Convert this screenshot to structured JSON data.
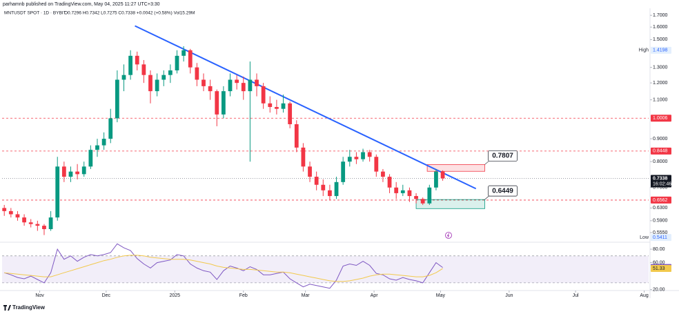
{
  "header": {
    "publisher": "parhamnb published on TradingView.com, May 04, 2025 11:27 UTC+3:30",
    "symbol": "MNTUSDT SPOT · 1D · BYBIT",
    "ohlc_text": "O0.7296 H0.7342 L0.7275 C0.7338 +0.0042 (+0.58%) Vol15.29M"
  },
  "chart_data": [
    {
      "type": "candlestick",
      "log_scale": true,
      "up_color": "#089981",
      "down_color": "#f23645",
      "xlim": [
        0,
        292
      ],
      "ylim": [
        0.53,
        1.744
      ],
      "xticks": [
        {
          "value": 17,
          "label": "Nov"
        },
        {
          "value": 47,
          "label": "Dec"
        },
        {
          "value": 78,
          "label": "2025"
        },
        {
          "value": 109,
          "label": "Feb"
        },
        {
          "value": 137,
          "label": "Mar"
        },
        {
          "value": 168,
          "label": "Apr"
        },
        {
          "value": 198,
          "label": "May"
        },
        {
          "value": 229,
          "label": "Jun"
        },
        {
          "value": 259,
          "label": "Jul"
        },
        {
          "value": 290,
          "label": "Aug"
        }
      ],
      "yticks": [
        {
          "value": 1.7,
          "label": "1.7000"
        },
        {
          "value": 1.6,
          "label": "1.6000"
        },
        {
          "value": 1.5,
          "label": "1.5000"
        },
        {
          "value": 1.3,
          "label": "1.3000"
        },
        {
          "value": 1.2,
          "label": "1.2000"
        },
        {
          "value": 1.1,
          "label": "1.1000"
        },
        {
          "value": 0.9,
          "label": "0.9000"
        },
        {
          "value": 0.8,
          "label": "0.8000"
        },
        {
          "value": 0.7,
          "label": "0.7000"
        },
        {
          "value": 0.63,
          "label": "0.6300"
        },
        {
          "value": 0.59,
          "label": "0.5900"
        },
        {
          "value": 0.555,
          "label": "0.5550"
        }
      ],
      "x": [
        1,
        4,
        7,
        10,
        13,
        16,
        19,
        22,
        25,
        28,
        31,
        34,
        37,
        40,
        43,
        46,
        49,
        52,
        55,
        58,
        61,
        64,
        67,
        70,
        73,
        76,
        79,
        82,
        85,
        88,
        91,
        94,
        97,
        100,
        103,
        106,
        109,
        112,
        115,
        118,
        121,
        124,
        127,
        130,
        133,
        136,
        139,
        142,
        145,
        148,
        151,
        154,
        157,
        160,
        163,
        166,
        169,
        172,
        175,
        178,
        181,
        184,
        187,
        190,
        193,
        196,
        199
      ],
      "ohlc": [
        [
          0.63,
          0.64,
          0.605,
          0.62
        ],
        [
          0.62,
          0.63,
          0.6,
          0.61
        ],
        [
          0.61,
          0.62,
          0.59,
          0.6
        ],
        [
          0.6,
          0.61,
          0.575,
          0.585
        ],
        [
          0.585,
          0.595,
          0.57,
          0.58
        ],
        [
          0.58,
          0.59,
          0.56,
          0.575
        ],
        [
          0.575,
          0.58,
          0.548,
          0.565
        ],
        [
          0.565,
          0.62,
          0.56,
          0.6
        ],
        [
          0.6,
          0.82,
          0.59,
          0.78
        ],
        [
          0.78,
          0.8,
          0.72,
          0.74
        ],
        [
          0.74,
          0.78,
          0.72,
          0.76
        ],
        [
          0.76,
          0.79,
          0.73,
          0.75
        ],
        [
          0.75,
          0.8,
          0.74,
          0.78
        ],
        [
          0.78,
          0.87,
          0.77,
          0.85
        ],
        [
          0.85,
          0.9,
          0.82,
          0.87
        ],
        [
          0.87,
          0.93,
          0.85,
          0.9
        ],
        [
          0.9,
          1.05,
          0.88,
          1.0
        ],
        [
          1.0,
          1.28,
          0.98,
          1.22
        ],
        [
          1.22,
          1.32,
          1.15,
          1.25
        ],
        [
          1.25,
          1.42,
          1.22,
          1.38
        ],
        [
          1.38,
          1.41,
          1.28,
          1.32
        ],
        [
          1.32,
          1.35,
          1.2,
          1.25
        ],
        [
          1.25,
          1.28,
          1.08,
          1.15
        ],
        [
          1.15,
          1.26,
          1.12,
          1.22
        ],
        [
          1.22,
          1.28,
          1.18,
          1.25
        ],
        [
          1.25,
          1.32,
          1.2,
          1.28
        ],
        [
          1.28,
          1.42,
          1.26,
          1.38
        ],
        [
          1.38,
          1.45,
          1.34,
          1.42
        ],
        [
          1.42,
          1.43,
          1.26,
          1.3
        ],
        [
          1.3,
          1.33,
          1.18,
          1.22
        ],
        [
          1.22,
          1.26,
          1.15,
          1.18
        ],
        [
          1.18,
          1.22,
          1.1,
          1.15
        ],
        [
          1.15,
          1.16,
          0.96,
          1.02
        ],
        [
          1.02,
          1.18,
          1.0,
          1.15
        ],
        [
          1.15,
          1.26,
          1.12,
          1.22
        ],
        [
          1.22,
          1.25,
          1.16,
          1.2
        ],
        [
          1.2,
          1.24,
          1.1,
          1.15
        ],
        [
          1.15,
          1.34,
          0.8,
          1.22
        ],
        [
          1.22,
          1.26,
          1.12,
          1.18
        ],
        [
          1.18,
          1.2,
          1.05,
          1.08
        ],
        [
          1.08,
          1.12,
          1.03,
          1.06
        ],
        [
          1.06,
          1.1,
          1.02,
          1.05
        ],
        [
          1.05,
          1.13,
          1.03,
          1.08
        ],
        [
          1.08,
          1.09,
          0.95,
          0.97
        ],
        [
          0.97,
          0.99,
          0.84,
          0.86
        ],
        [
          0.86,
          0.88,
          0.76,
          0.78
        ],
        [
          0.78,
          0.8,
          0.72,
          0.74
        ],
        [
          0.74,
          0.76,
          0.69,
          0.71
        ],
        [
          0.71,
          0.73,
          0.67,
          0.69
        ],
        [
          0.69,
          0.71,
          0.655,
          0.67
        ],
        [
          0.67,
          0.74,
          0.66,
          0.72
        ],
        [
          0.72,
          0.82,
          0.71,
          0.8
        ],
        [
          0.8,
          0.85,
          0.78,
          0.82
        ],
        [
          0.82,
          0.84,
          0.79,
          0.81
        ],
        [
          0.81,
          0.855,
          0.8,
          0.84
        ],
        [
          0.84,
          0.85,
          0.8,
          0.82
        ],
        [
          0.82,
          0.83,
          0.74,
          0.76
        ],
        [
          0.76,
          0.77,
          0.72,
          0.74
        ],
        [
          0.74,
          0.75,
          0.68,
          0.7
        ],
        [
          0.7,
          0.72,
          0.66,
          0.68
        ],
        [
          0.68,
          0.71,
          0.67,
          0.69
        ],
        [
          0.69,
          0.7,
          0.65,
          0.67
        ],
        [
          0.67,
          0.68,
          0.645,
          0.66
        ],
        [
          0.66,
          0.665,
          0.64,
          0.645
        ],
        [
          0.645,
          0.71,
          0.64,
          0.7
        ],
        [
          0.7,
          0.77,
          0.69,
          0.76
        ],
        [
          0.76,
          0.765,
          0.725,
          0.7338
        ]
      ],
      "levels": [
        {
          "value": 1.0006,
          "color": "#f23645"
        },
        {
          "value": 0.8448,
          "color": "#f23645"
        },
        {
          "value": 0.6562,
          "color": "#f23645"
        }
      ],
      "current_price": {
        "value": 0.7338,
        "countdown": "16:02:46"
      },
      "high": {
        "label": "High",
        "value": 1.4198
      },
      "low": {
        "label": "Low",
        "value": 0.5411
      },
      "trendline": {
        "x": [
          60,
          214
        ],
        "y": [
          1.61,
          0.696
        ],
        "color": "#2962ff"
      },
      "zones": [
        {
          "x": [
            192,
            218
          ],
          "y": [
            0.761,
            0.788
          ],
          "color": "#f23645",
          "label": 0.7807
        },
        {
          "x": [
            187,
            218
          ],
          "y": [
            0.628,
            0.658
          ],
          "color": "#089981",
          "label": 0.6449
        }
      ]
    },
    {
      "type": "line",
      "xlim": [
        0,
        292
      ],
      "ylim": [
        18.6,
        89.3
      ],
      "yticks": [
        {
          "value": 80,
          "label": "80.00"
        },
        {
          "value": 60,
          "label": "60.00"
        },
        {
          "value": 20,
          "label": "20.00"
        }
      ],
      "levels": [
        70,
        30
      ],
      "band_color": "#7e57c2",
      "x": [
        1,
        4,
        7,
        10,
        13,
        16,
        19,
        22,
        25,
        28,
        31,
        34,
        37,
        40,
        43,
        46,
        49,
        52,
        55,
        58,
        61,
        64,
        67,
        70,
        73,
        76,
        79,
        82,
        85,
        88,
        91,
        94,
        97,
        100,
        103,
        106,
        109,
        112,
        115,
        118,
        121,
        124,
        127,
        130,
        133,
        136,
        139,
        142,
        145,
        148,
        151,
        154,
        157,
        160,
        163,
        166,
        169,
        172,
        175,
        178,
        181,
        184,
        187,
        190,
        193,
        196,
        199
      ],
      "series": [
        {
          "color": "#7e57c2",
          "values": [
            45,
            42,
            38,
            36,
            40,
            35,
            30,
            45,
            80,
            65,
            70,
            62,
            68,
            72,
            70,
            72,
            75,
            88,
            82,
            78,
            66,
            58,
            52,
            60,
            62,
            64,
            72,
            70,
            58,
            52,
            48,
            46,
            35,
            48,
            55,
            52,
            48,
            54,
            50,
            42,
            42,
            44,
            46,
            36,
            30,
            24,
            28,
            26,
            24,
            22,
            34,
            55,
            58,
            56,
            62,
            56,
            44,
            42,
            36,
            34,
            38,
            35,
            33,
            30,
            45,
            60,
            52.86
          ]
        },
        {
          "color": "#f2c94c",
          "values": [
            45,
            44,
            43,
            42,
            41,
            40,
            39,
            39,
            42,
            45,
            48,
            51,
            54,
            57,
            60,
            63,
            65,
            68,
            70,
            71,
            71,
            70,
            68,
            67,
            66,
            65,
            65,
            65,
            64,
            62,
            60,
            58,
            55,
            53,
            52,
            51,
            50,
            50,
            49,
            48,
            47,
            46,
            46,
            45,
            43,
            41,
            39,
            37,
            35,
            33,
            32,
            32,
            33,
            35,
            37,
            40,
            42,
            43,
            43,
            42,
            41,
            40,
            39,
            39,
            41,
            45,
            51.33
          ]
        }
      ]
    }
  ],
  "footer": {
    "brand": "TradingView"
  }
}
